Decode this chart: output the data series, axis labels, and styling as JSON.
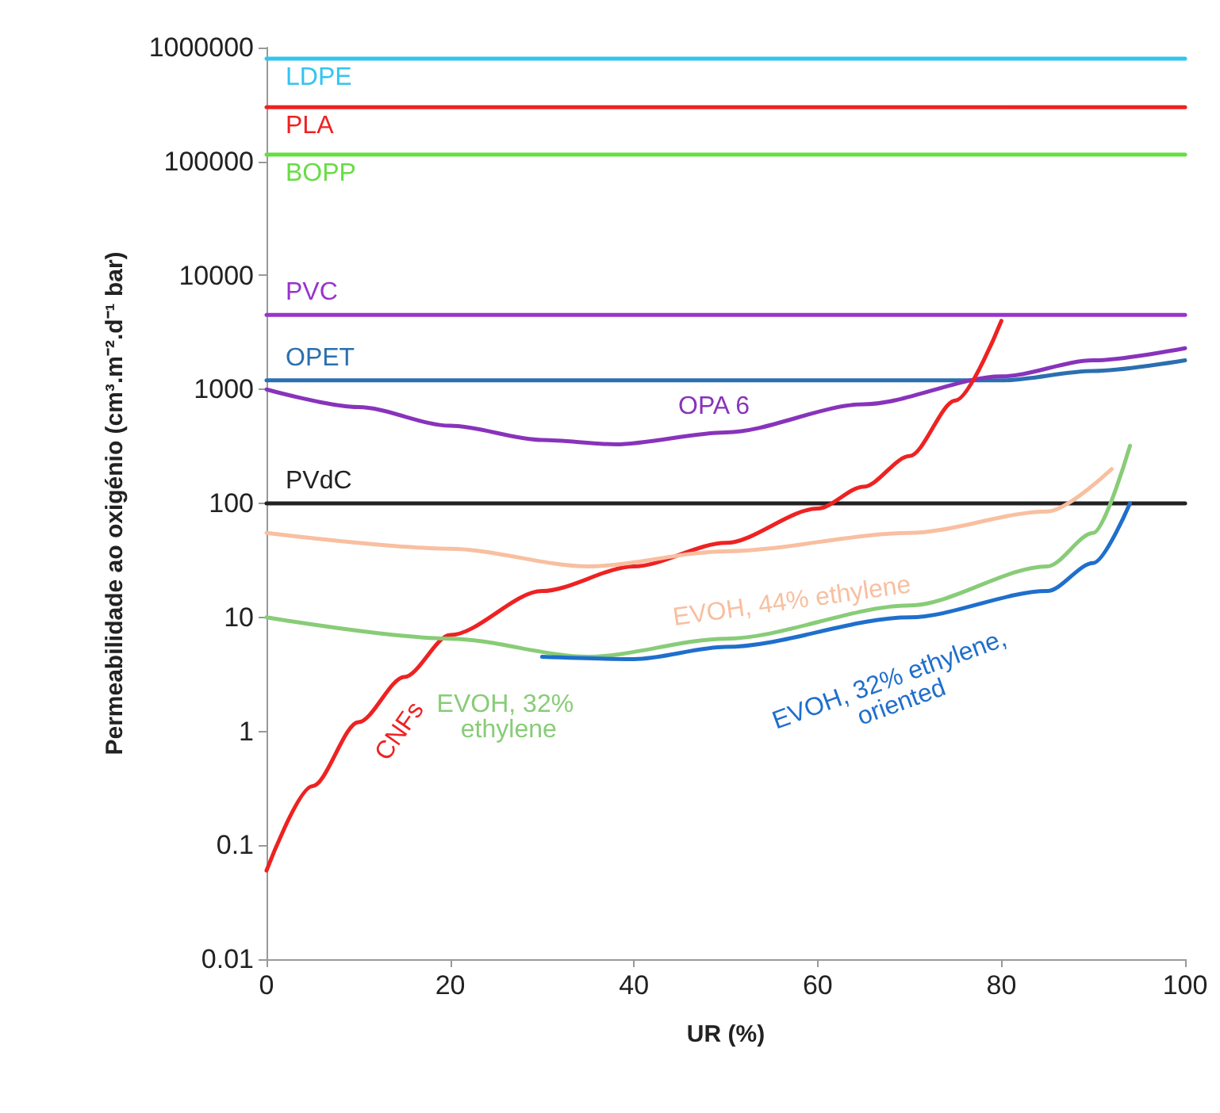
{
  "chart_data": {
    "type": "line",
    "xlabel": "UR (%)",
    "ylabel": "Permeabilidade ao oxigénio (cm³.m⁻².d⁻¹ bar)",
    "log": "y",
    "xlim": [
      0,
      100
    ],
    "xticks": [
      0,
      20,
      40,
      60,
      80,
      100
    ],
    "ylim": [
      0.01,
      1000000
    ],
    "yticks": [
      {
        "value": 0.01,
        "label": "0.01"
      },
      {
        "value": 0.1,
        "label": "0.1"
      },
      {
        "value": 1,
        "label": "1"
      },
      {
        "value": 10,
        "label": "10"
      },
      {
        "value": 100,
        "label": "100"
      },
      {
        "value": 1000,
        "label": "1000"
      },
      {
        "value": 10000,
        "label": "10000"
      },
      {
        "value": 100000,
        "label": "100000"
      },
      {
        "value": 1000000,
        "label": "1000000"
      }
    ],
    "grid": false,
    "legend": false,
    "marker": "none",
    "line_style": "solid",
    "series": [
      {
        "name": "LDPE",
        "color": "#33c4f0",
        "x": [
          0,
          50,
          100
        ],
        "values": [
          800000,
          800000,
          800000
        ]
      },
      {
        "name": "PLA",
        "color": "#ee2222",
        "x": [
          0,
          50,
          100
        ],
        "values": [
          300000,
          300000,
          300000
        ]
      },
      {
        "name": "BOPP",
        "color": "#66dd44",
        "x": [
          0,
          50,
          100
        ],
        "values": [
          115000,
          115000,
          115000
        ]
      },
      {
        "name": "PVC",
        "color": "#9933cc",
        "x": [
          0,
          50,
          100
        ],
        "values": [
          4500,
          4500,
          4500
        ]
      },
      {
        "name": "OPET",
        "color": "#2a6fb0",
        "x": [
          0,
          40,
          80,
          90,
          100
        ],
        "values": [
          1200,
          1200,
          1200,
          1450,
          1800
        ]
      },
      {
        "name": "PVdC",
        "color": "#222222",
        "x": [
          0,
          50,
          100
        ],
        "values": [
          100,
          100,
          100
        ]
      },
      {
        "name": "OPA 6",
        "color": "#8833bb",
        "x": [
          0,
          10,
          20,
          30,
          38,
          50,
          65,
          80,
          90,
          100
        ],
        "values": [
          1000,
          700,
          480,
          360,
          330,
          420,
          740,
          1300,
          1800,
          2300
        ]
      },
      {
        "name": "CNFs",
        "color": "#ee2222",
        "x": [
          0,
          5,
          10,
          15,
          20,
          30,
          40,
          50,
          60,
          65,
          70,
          75,
          80
        ],
        "values": [
          0.06,
          0.33,
          1.2,
          3,
          7,
          17,
          28,
          45,
          90,
          140,
          260,
          800,
          4000
        ]
      },
      {
        "name": "EVOH, 44% ethylene",
        "color": "#f8bfa0",
        "x": [
          0,
          20,
          35,
          50,
          70,
          85,
          92
        ],
        "values": [
          55,
          40,
          28,
          38,
          55,
          85,
          200
        ]
      },
      {
        "name": "EVOH, 32% ethylene",
        "color": "#88cc77",
        "x": [
          0,
          20,
          35,
          50,
          70,
          85,
          90,
          94
        ],
        "values": [
          10,
          6.5,
          4.5,
          6.5,
          12.7,
          28,
          55,
          320
        ]
      },
      {
        "name": "EVOH, 32% ethylene, oriented",
        "color": "#1f6fcc",
        "x": [
          30,
          40,
          50,
          70,
          85,
          90,
          94
        ],
        "values": [
          4.5,
          4.3,
          5.5,
          10,
          17,
          30,
          100
        ]
      }
    ]
  }
}
